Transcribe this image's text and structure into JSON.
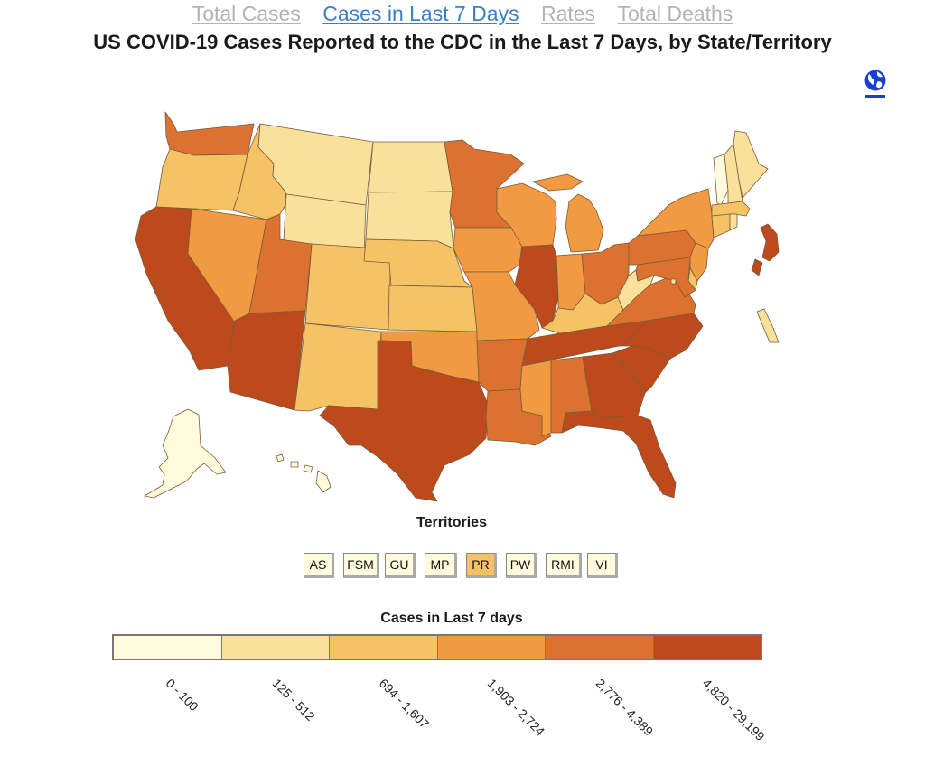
{
  "tabs": [
    {
      "label": "Total Cases",
      "active": false
    },
    {
      "label": "Cases in Last 7 Days",
      "active": true
    },
    {
      "label": "Rates",
      "active": false
    },
    {
      "label": "Total Deaths",
      "active": false
    }
  ],
  "title": "US COVID-19 Cases Reported to the CDC in the Last 7 Days, by State/Territory",
  "globe_icon": "globe-icon",
  "territories": {
    "title": "Territories",
    "items": [
      {
        "label": "AS",
        "bin": 0
      },
      {
        "label": "FSM",
        "bin": 0
      },
      {
        "label": "GU",
        "bin": 0
      },
      {
        "label": "MP",
        "bin": 0
      },
      {
        "label": "PR",
        "bin": 2
      },
      {
        "label": "PW",
        "bin": 0
      },
      {
        "label": "RMI",
        "bin": 0
      },
      {
        "label": "VI",
        "bin": 0
      }
    ]
  },
  "legend": {
    "title": "Cases in Last 7 days",
    "bins": [
      {
        "label": "0 - 100",
        "color": "#fffbdc"
      },
      {
        "label": "125 - 512",
        "color": "#f9e19b"
      },
      {
        "label": "694 - 1,607",
        "color": "#f5c363"
      },
      {
        "label": "1,903 - 2,724",
        "color": "#f19a41"
      },
      {
        "label": "2,776 - 4,389",
        "color": "#dc722f"
      },
      {
        "label": "4,820 - 29,199",
        "color": "#bc4a1d"
      }
    ]
  },
  "state_bins": {
    "WA": 4,
    "OR": 2,
    "CA": 5,
    "NV": 3,
    "ID": 2,
    "MT": 1,
    "WY": 1,
    "UT": 4,
    "AZ": 5,
    "CO": 2,
    "NM": 2,
    "ND": 1,
    "SD": 1,
    "NE": 2,
    "KS": 2,
    "OK": 3,
    "TX": 5,
    "MN": 4,
    "IA": 3,
    "MO": 3,
    "AR": 4,
    "LA": 4,
    "WI": 3,
    "IL": 5,
    "MI": 3,
    "IN": 3,
    "OH": 4,
    "KY": 2,
    "TN": 5,
    "MS": 3,
    "AL": 4,
    "GA": 5,
    "FL": 5,
    "SC": 5,
    "NC": 5,
    "VA": 4,
    "WV": 1,
    "PA": 4,
    "NY": 3,
    "VT": 0,
    "NH": 1,
    "ME": 1,
    "MA": 2,
    "RI": 1,
    "CT": 2,
    "NJ": 3,
    "DE": 2,
    "MD": 4,
    "DC": 1,
    "AK": 0,
    "HI": 0,
    "RMI_MAP": 5,
    "VI_MAP": 1
  }
}
